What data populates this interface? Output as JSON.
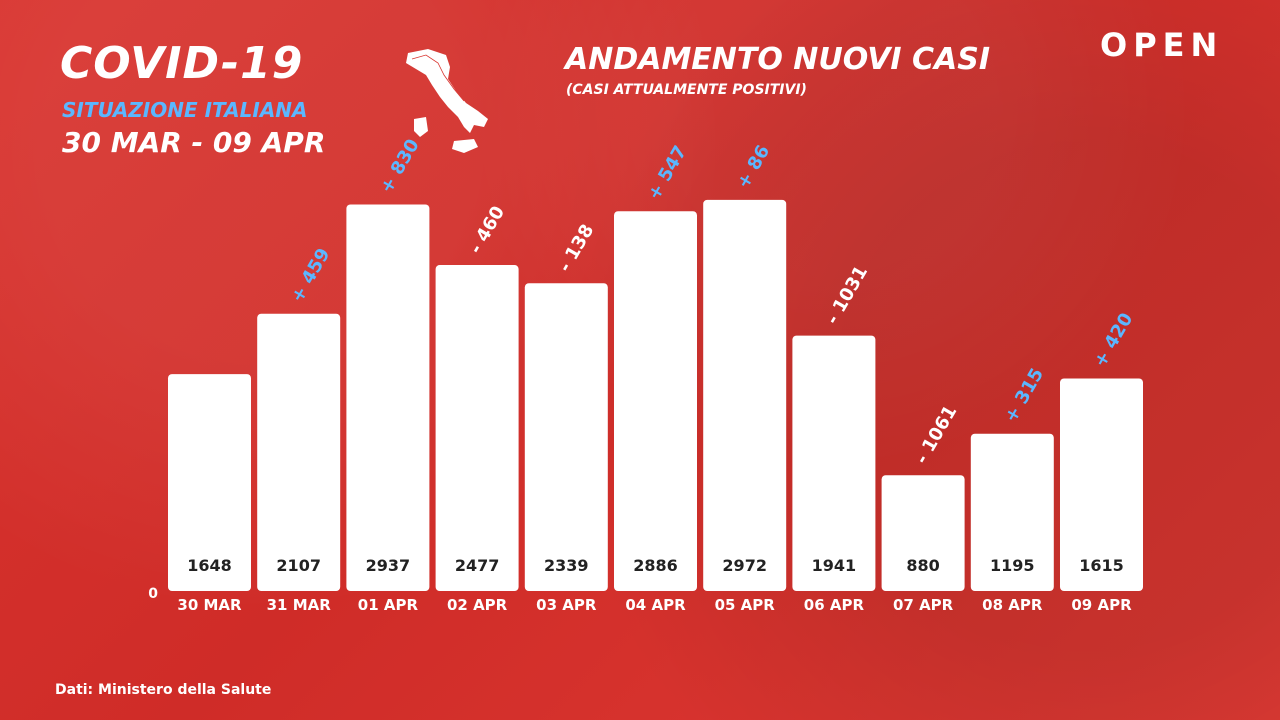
{
  "header": {
    "main_title": "COVID-19",
    "subtitle": "SITUAZIONE ITALIANA",
    "date_range": "30 MAR - 09 APR"
  },
  "logo_text": "OPEN",
  "source_text": "Dati: Ministero della Salute",
  "chart_data": {
    "type": "bar",
    "title": "ANDAMENTO NUOVI CASI",
    "subtitle": "(CASI ATTUALMENTE POSITIVI)",
    "categories": [
      "30 MAR",
      "31 MAR",
      "01 APR",
      "02 APR",
      "03 APR",
      "04 APR",
      "05 APR",
      "06 APR",
      "07 APR",
      "08 APR",
      "09 APR"
    ],
    "values": [
      1648,
      2107,
      2937,
      2477,
      2339,
      2886,
      2972,
      1941,
      880,
      1195,
      1615
    ],
    "changes": [
      "",
      "+ 459",
      "+ 830",
      "- 460",
      "- 138",
      "+ 547",
      "+ 86",
      "- 1031",
      "- 1061",
      "+ 315",
      "+ 420"
    ],
    "change_direction": [
      "",
      "up",
      "up",
      "down",
      "down",
      "up",
      "up",
      "down",
      "down",
      "up",
      "up"
    ],
    "y_axis_label": "0",
    "ylim": [
      0,
      3000
    ],
    "grid": false,
    "colors": {
      "bar": "#ffffff",
      "up": "#5bb7ff",
      "down": "#ffffff",
      "value_text": "#222222",
      "background": "#d9342f"
    }
  }
}
